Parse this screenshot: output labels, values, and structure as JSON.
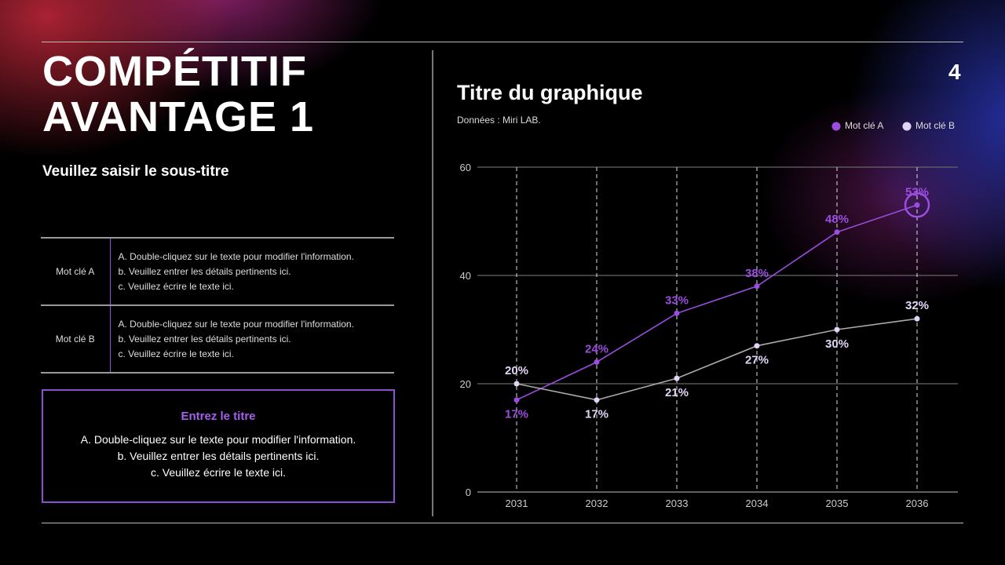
{
  "slide": {
    "title_line1": "COMPÉTITIF",
    "title_line2": "AVANTAGE 1",
    "subtitle": "Veuillez saisir le sous-titre",
    "page_number": "4"
  },
  "table": [
    {
      "key": "Mot clé A",
      "lines": [
        "A. Double-cliquez sur le texte pour modifier l'information.",
        "b. Veuillez entrer les détails pertinents ici.",
        "c. Veuillez écrire le texte ici."
      ]
    },
    {
      "key": "Mot clé B",
      "lines": [
        "A. Double-cliquez sur le texte pour modifier l'information.",
        "b. Veuillez entrer les détails pertinents ici.",
        "c. Veuillez écrire le texte ici."
      ]
    }
  ],
  "box": {
    "title": "Entrez le titre",
    "lines": [
      "A. Double-cliquez sur le texte pour modifier l'information.",
      "b. Veuillez entrer les détails pertinents ici.",
      "c. Veuillez écrire le texte ici."
    ]
  },
  "chart_data": {
    "type": "line",
    "title": "Titre du graphique",
    "subtitle": "Données : Miri LAB.",
    "categories": [
      "2031",
      "2032",
      "2033",
      "2034",
      "2035",
      "2036"
    ],
    "ylim": [
      0,
      60
    ],
    "yticks": [
      0,
      20,
      40,
      60
    ],
    "grid": true,
    "legend": "top-right",
    "series": [
      {
        "name": "Mot clé A",
        "color": "#9b4de0",
        "values": [
          17,
          24,
          33,
          38,
          48,
          53
        ],
        "labels": [
          "17%",
          "24%",
          "33%",
          "38%",
          "48%",
          "53%"
        ]
      },
      {
        "name": "Mot clé B",
        "color": "#e2d4f7",
        "values": [
          20,
          17,
          21,
          27,
          30,
          32
        ],
        "labels": [
          "20%",
          "17%",
          "21%",
          "27%",
          "30%",
          "32%"
        ]
      }
    ]
  }
}
